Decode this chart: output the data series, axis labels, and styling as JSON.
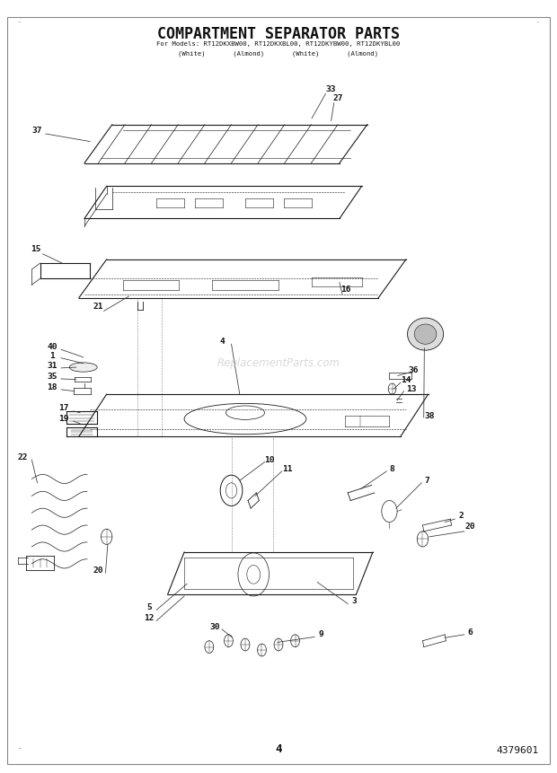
{
  "title": "COMPARTMENT SEPARATOR PARTS",
  "subtitle_line1": "For Models: RT12DKXBW00, RT12DKXBL00, RT12DKYBW00, RT12DKYBL00",
  "subtitle_line2": "(White)       (Almond)       (White)       (Almond)",
  "page_number": "4",
  "part_number": "4379601",
  "bg_color": "#ffffff",
  "diagram_color": "#1a1a1a",
  "watermark": "ReplacementParts.com"
}
